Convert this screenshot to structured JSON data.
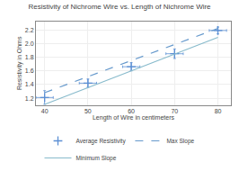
{
  "chart_data": {
    "type": "scatter",
    "title": "Resistivity of Nichrome Wire vs. Length of Nichrome Wire",
    "xlabel": "Length of Wire in centimeters",
    "ylabel": "Resistivity in Ohms",
    "xlim": [
      38,
      83
    ],
    "ylim": [
      1.1,
      2.32
    ],
    "xticks": [
      40,
      50,
      60,
      70,
      80
    ],
    "yticks": [
      1.2,
      1.4,
      1.6,
      1.8,
      {
        "value": 2.0,
        "label": "2.0"
      },
      2.2
    ],
    "grid": true,
    "legend": "bottom",
    "series": [
      {
        "name": "Average Resistivity",
        "type": "scatter",
        "marker": "cross",
        "color": "#5b8fd4",
        "x": [
          40,
          50,
          60,
          70,
          80
        ],
        "values": [
          1.21,
          1.42,
          1.66,
          1.85,
          2.19
        ],
        "x_err": [
          2,
          2,
          2,
          2,
          2
        ],
        "y_err": [
          0.1,
          0.06,
          0.06,
          0.07,
          0.05
        ]
      },
      {
        "name": "Max Slope",
        "type": "line",
        "line_style": "dashed",
        "color": "#6699cc",
        "x": [
          40,
          80
        ],
        "values": [
          1.28,
          2.22
        ]
      },
      {
        "name": "Minimum Slope",
        "type": "line",
        "line_style": "solid",
        "color": "#88bbcc",
        "x": [
          40,
          80
        ],
        "values": [
          1.11,
          2.09
        ]
      }
    ]
  }
}
